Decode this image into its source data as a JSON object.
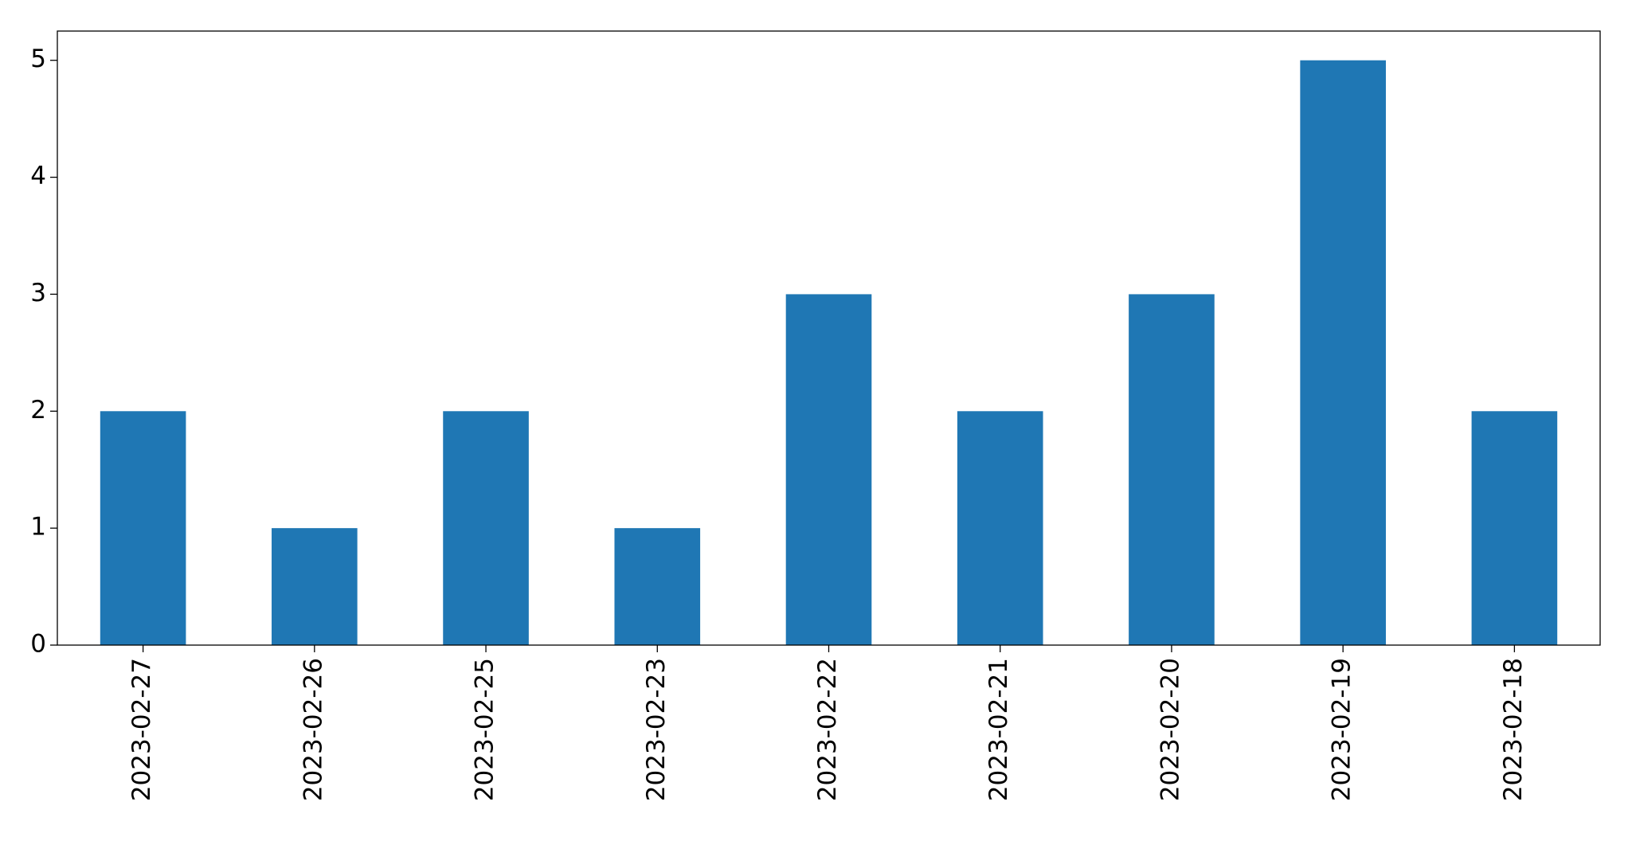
{
  "chart_data": {
    "type": "bar",
    "categories": [
      "2023-02-27",
      "2023-02-26",
      "2023-02-25",
      "2023-02-23",
      "2023-02-22",
      "2023-02-21",
      "2023-02-20",
      "2023-02-19",
      "2023-02-18"
    ],
    "values": [
      2,
      1,
      2,
      1,
      3,
      2,
      3,
      5,
      2
    ],
    "color": "#1f77b4",
    "ylim": [
      0,
      5.25
    ],
    "yticks": [
      0,
      1,
      2,
      3,
      4,
      5
    ],
    "grid": false
  }
}
